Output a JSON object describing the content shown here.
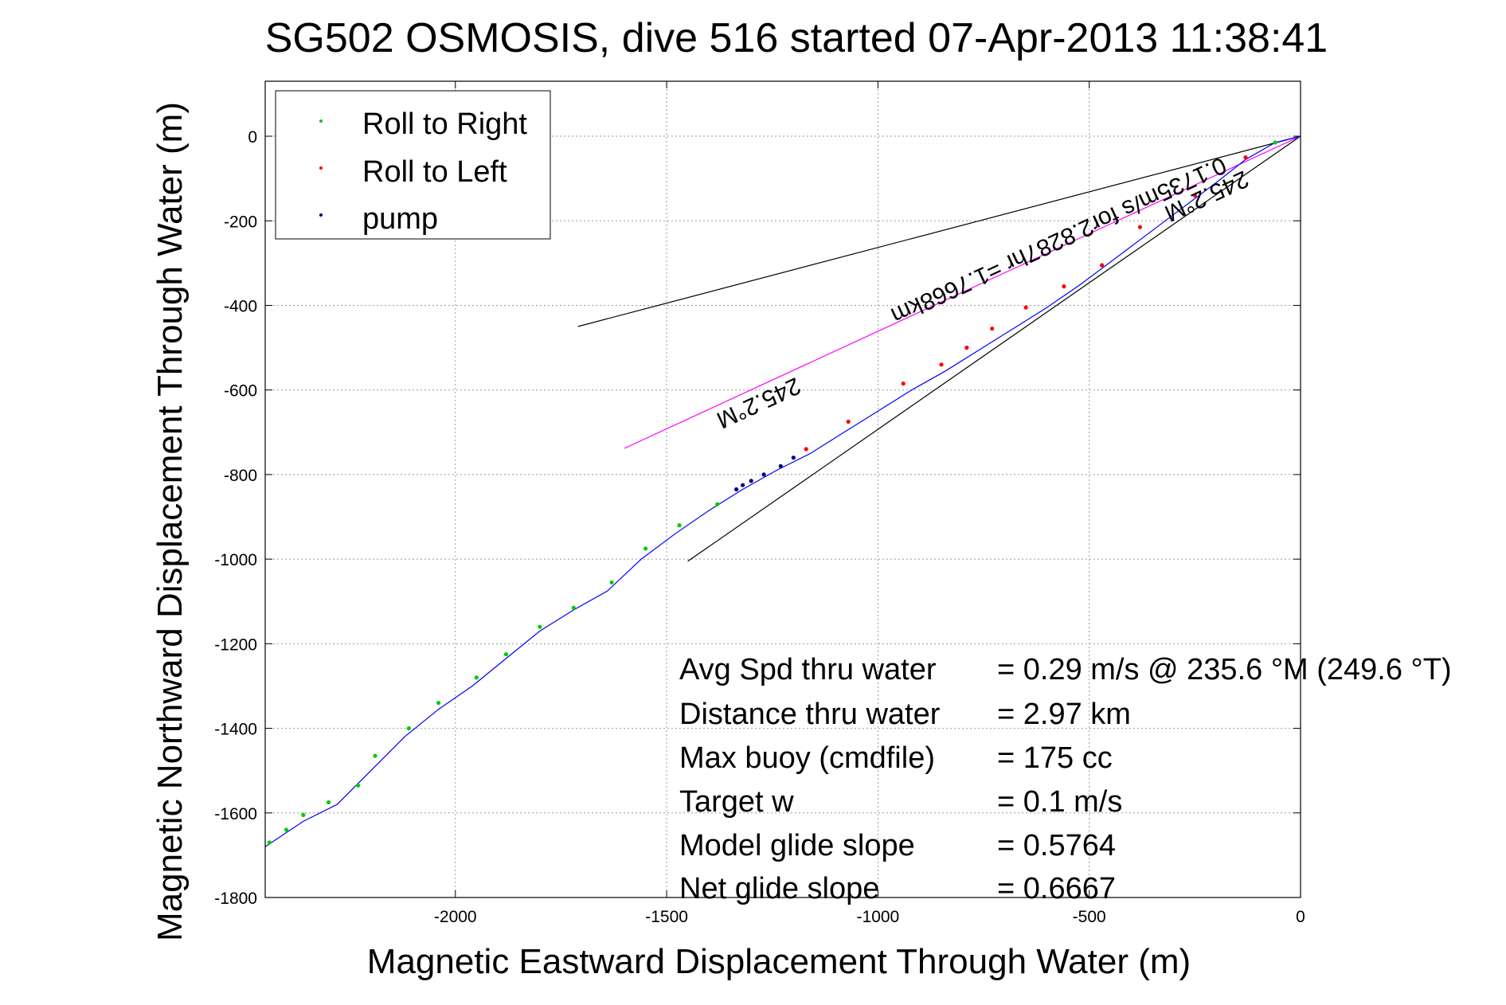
{
  "chart_data": {
    "type": "line",
    "title": "SG502 OSMOSIS, dive 516 started 07-Apr-2013 11:38:41",
    "xlabel": "Magnetic Eastward Displacement Through Water (m)",
    "ylabel": "Magnetic Northward Displacement Through Water (m)",
    "xlim": [
      -2450,
      0
    ],
    "ylim": [
      -1800,
      130
    ],
    "xticks": [
      -2000,
      -1500,
      -1000,
      -500,
      0
    ],
    "yticks": [
      0,
      -200,
      -400,
      -600,
      -800,
      -1000,
      -1200,
      -1400,
      -1600,
      -1800
    ],
    "grid": true,
    "legend_position": "top-left",
    "legend": [
      {
        "label": "Roll to Right",
        "color": "#00cc00"
      },
      {
        "label": "Roll to Left",
        "color": "#ff0000"
      },
      {
        "label": "pump",
        "color": "#000080"
      }
    ],
    "colors": {
      "track": "#0000ff",
      "current": "#ff00ff",
      "bounds": "#000000"
    },
    "track": {
      "name": "glider track",
      "x": [
        0,
        -60,
        -130,
        -200,
        -280,
        -360,
        -440,
        -520,
        -600,
        -680,
        -760,
        -840,
        -920,
        -1000,
        -1080,
        -1160,
        -1240,
        -1320,
        -1400,
        -1480,
        -1560,
        -1640,
        -1720,
        -1800,
        -1880,
        -1960,
        -2040,
        -2120,
        -2200,
        -2280,
        -2360,
        -2450
      ],
      "y": [
        0,
        -15,
        -55,
        -110,
        -170,
        -230,
        -290,
        -350,
        -405,
        -455,
        -505,
        -555,
        -600,
        -650,
        -700,
        -750,
        -790,
        -835,
        -885,
        -940,
        -1000,
        -1075,
        -1120,
        -1170,
        -1235,
        -1300,
        -1355,
        -1420,
        -1500,
        -1580,
        -1620,
        -1680
      ]
    },
    "roll_right_points": {
      "x": [
        -60,
        -1380,
        -1470,
        -1550,
        -1630,
        -1720,
        -1800,
        -1880,
        -1950,
        -2040,
        -2110,
        -2190,
        -2230,
        -2300,
        -2360,
        -2400,
        -2440
      ],
      "y": [
        -15,
        -870,
        -920,
        -975,
        -1055,
        -1115,
        -1160,
        -1225,
        -1280,
        -1340,
        -1400,
        -1465,
        -1535,
        -1575,
        -1605,
        -1640,
        -1670
      ]
    },
    "roll_left_points": {
      "x": [
        -130,
        -250,
        -380,
        -470,
        -560,
        -650,
        -730,
        -790,
        -850,
        -940,
        -1070,
        -1170
      ],
      "y": [
        -50,
        -140,
        -215,
        -305,
        -355,
        -405,
        -455,
        -500,
        -540,
        -585,
        -675,
        -740
      ]
    },
    "pump_points": {
      "x": [
        -1200,
        -1230,
        -1270,
        -1300,
        -1320,
        -1335
      ],
      "y": [
        -760,
        -780,
        -800,
        -815,
        -825,
        -835
      ]
    },
    "current_line": {
      "x": [
        0,
        -1600
      ],
      "y": [
        0,
        -738
      ]
    },
    "upper_bound_line": {
      "x": [
        0,
        -1710
      ],
      "y": [
        0,
        -450
      ]
    },
    "lower_bound_line": {
      "x": [
        0,
        -1450
      ],
      "y": [
        0,
        -1005
      ]
    },
    "annotations": {
      "current_speed": "0.1735m/s for2.8287hr =1.7668km",
      "heading_near": "245.2°M",
      "heading_far": "245.2°M"
    },
    "stats": [
      {
        "label": "Avg Spd thru water",
        "value": "=  0.29 m/s @ 235.6 °M (249.6 °T)"
      },
      {
        "label": "Distance thru water",
        "value": "=  2.97 km"
      },
      {
        "label": "Max buoy (cmdfile)",
        "value": "= 175 cc"
      },
      {
        "label": "Target w",
        "value": "= 0.1 m/s"
      },
      {
        "label": "Model glide slope",
        "value": "= 0.5764"
      },
      {
        "label": "Net glide slope",
        "value": "= 0.6667"
      }
    ]
  }
}
